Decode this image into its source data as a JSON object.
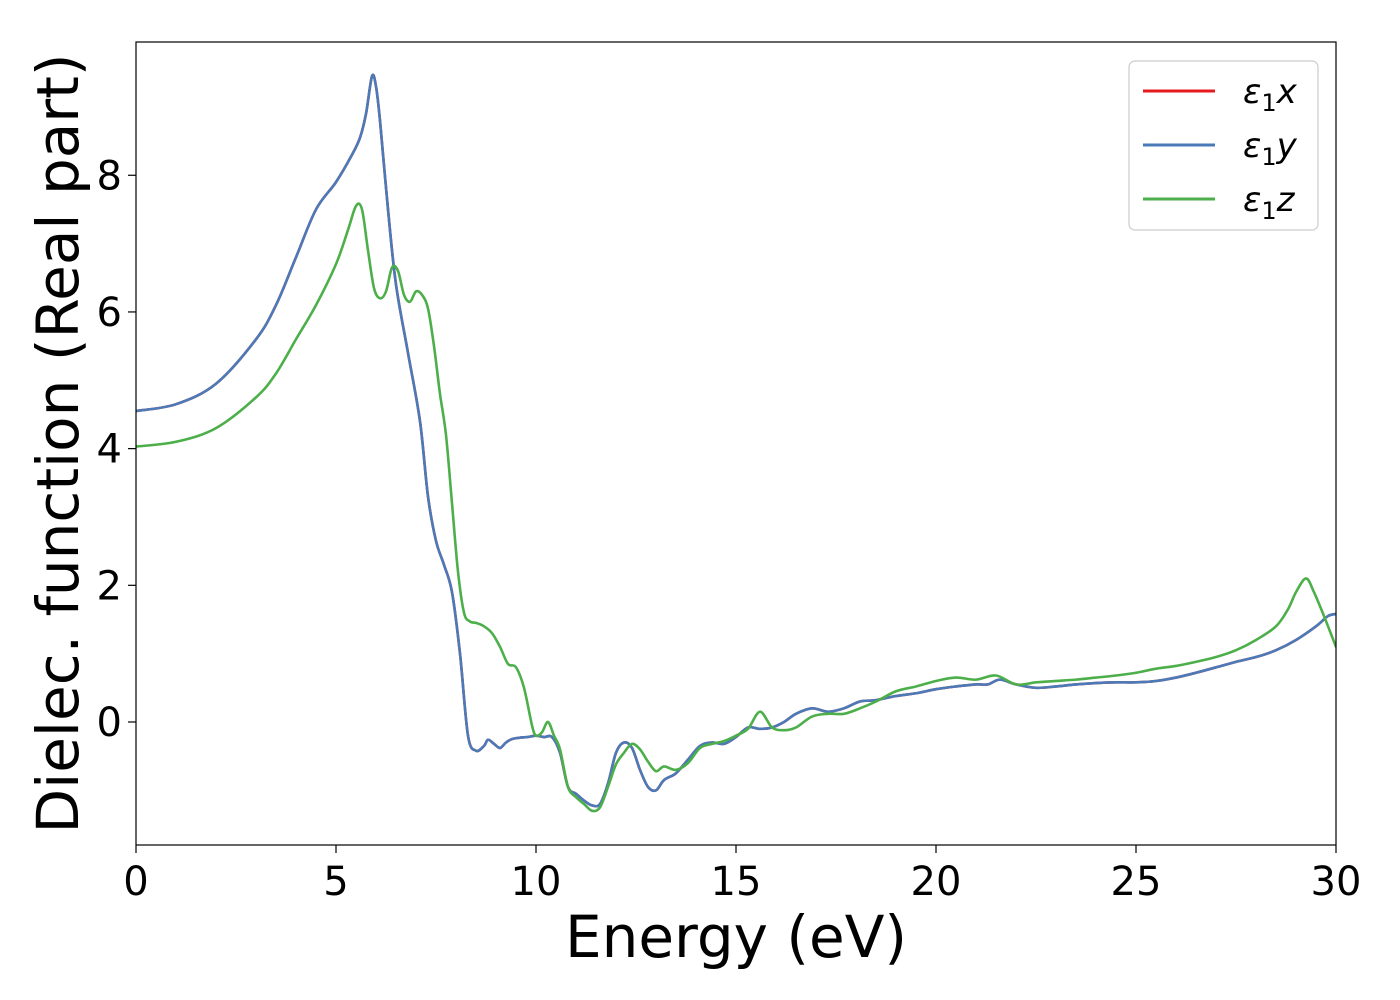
{
  "chart_data": {
    "type": "line",
    "title": "",
    "xlabel": "Energy (eV)",
    "ylabel": "Dielec. function (Real part)",
    "xlim": [
      0,
      30
    ],
    "ylim": [
      -1.8,
      9.95
    ],
    "xticks": [
      0,
      5,
      10,
      15,
      20,
      25,
      30
    ],
    "yticks": [
      0,
      2,
      4,
      6,
      8
    ],
    "grid": false,
    "legend_position": "top-right",
    "series": [
      {
        "name": "ε₁x",
        "legend_main": "ε",
        "legend_sub": "1",
        "legend_axis": "x",
        "color": "#e41a1c",
        "x": [
          0,
          1,
          2,
          3,
          3.5,
          4,
          4.5,
          5,
          5.4,
          5.6,
          5.75,
          5.9,
          6.0,
          6.1,
          6.3,
          6.5,
          6.8,
          7.1,
          7.3,
          7.5,
          7.7,
          7.9,
          8.1,
          8.3,
          8.5,
          8.7,
          8.8,
          8.95,
          9.1,
          9.25,
          9.4,
          9.6,
          9.8,
          10.0,
          10.2,
          10.4,
          10.6,
          10.8,
          11.0,
          11.2,
          11.4,
          11.6,
          11.8,
          12.0,
          12.2,
          12.4,
          12.6,
          12.8,
          13.0,
          13.2,
          13.5,
          13.8,
          14.1,
          14.4,
          14.7,
          15.0,
          15.3,
          15.6,
          15.9,
          16.2,
          16.5,
          16.9,
          17.3,
          17.7,
          18.1,
          18.5,
          19.0,
          19.5,
          20.0,
          20.5,
          21.0,
          21.3,
          21.6,
          22.0,
          22.5,
          23.0,
          23.5,
          24.0,
          24.5,
          25.0,
          25.5,
          26.0,
          26.5,
          27.0,
          27.5,
          28.0,
          28.5,
          29.0,
          29.5,
          29.8,
          30.0
        ],
        "y": [
          4.55,
          4.65,
          4.95,
          5.6,
          6.1,
          6.8,
          7.5,
          7.9,
          8.3,
          8.55,
          8.9,
          9.45,
          9.3,
          8.8,
          7.5,
          6.4,
          5.4,
          4.4,
          3.3,
          2.65,
          2.3,
          1.9,
          1.0,
          -0.2,
          -0.42,
          -0.35,
          -0.26,
          -0.32,
          -0.38,
          -0.3,
          -0.25,
          -0.23,
          -0.22,
          -0.2,
          -0.22,
          -0.22,
          -0.45,
          -0.95,
          -1.05,
          -1.15,
          -1.22,
          -1.2,
          -0.9,
          -0.45,
          -0.3,
          -0.38,
          -0.7,
          -0.95,
          -1.0,
          -0.85,
          -0.75,
          -0.55,
          -0.35,
          -0.3,
          -0.32,
          -0.22,
          -0.08,
          -0.1,
          -0.08,
          0.0,
          0.12,
          0.2,
          0.15,
          0.2,
          0.3,
          0.32,
          0.38,
          0.42,
          0.48,
          0.52,
          0.55,
          0.55,
          0.62,
          0.55,
          0.5,
          0.52,
          0.55,
          0.57,
          0.58,
          0.58,
          0.6,
          0.65,
          0.72,
          0.8,
          0.88,
          0.95,
          1.05,
          1.2,
          1.4,
          1.55,
          1.58
        ]
      },
      {
        "name": "ε₁y",
        "legend_main": "ε",
        "legend_sub": "1",
        "legend_axis": "y",
        "color": "#4a7ab8",
        "x": [
          0,
          1,
          2,
          3,
          3.5,
          4,
          4.5,
          5,
          5.4,
          5.6,
          5.75,
          5.9,
          6.0,
          6.1,
          6.3,
          6.5,
          6.8,
          7.1,
          7.3,
          7.5,
          7.7,
          7.9,
          8.1,
          8.3,
          8.5,
          8.7,
          8.8,
          8.95,
          9.1,
          9.25,
          9.4,
          9.6,
          9.8,
          10.0,
          10.2,
          10.4,
          10.6,
          10.8,
          11.0,
          11.2,
          11.4,
          11.6,
          11.8,
          12.0,
          12.2,
          12.4,
          12.6,
          12.8,
          13.0,
          13.2,
          13.5,
          13.8,
          14.1,
          14.4,
          14.7,
          15.0,
          15.3,
          15.6,
          15.9,
          16.2,
          16.5,
          16.9,
          17.3,
          17.7,
          18.1,
          18.5,
          19.0,
          19.5,
          20.0,
          20.5,
          21.0,
          21.3,
          21.6,
          22.0,
          22.5,
          23.0,
          23.5,
          24.0,
          24.5,
          25.0,
          25.5,
          26.0,
          26.5,
          27.0,
          27.5,
          28.0,
          28.5,
          29.0,
          29.5,
          29.8,
          30.0
        ],
        "y": [
          4.55,
          4.65,
          4.95,
          5.6,
          6.1,
          6.8,
          7.5,
          7.9,
          8.3,
          8.55,
          8.9,
          9.45,
          9.3,
          8.8,
          7.5,
          6.4,
          5.4,
          4.4,
          3.3,
          2.65,
          2.3,
          1.9,
          1.0,
          -0.2,
          -0.42,
          -0.35,
          -0.26,
          -0.32,
          -0.38,
          -0.3,
          -0.25,
          -0.23,
          -0.22,
          -0.2,
          -0.22,
          -0.22,
          -0.45,
          -0.95,
          -1.05,
          -1.15,
          -1.22,
          -1.2,
          -0.9,
          -0.45,
          -0.3,
          -0.38,
          -0.7,
          -0.95,
          -1.0,
          -0.85,
          -0.75,
          -0.55,
          -0.35,
          -0.3,
          -0.32,
          -0.22,
          -0.08,
          -0.1,
          -0.08,
          0.0,
          0.12,
          0.2,
          0.15,
          0.2,
          0.3,
          0.32,
          0.38,
          0.42,
          0.48,
          0.52,
          0.55,
          0.55,
          0.62,
          0.55,
          0.5,
          0.52,
          0.55,
          0.57,
          0.58,
          0.58,
          0.6,
          0.65,
          0.72,
          0.8,
          0.88,
          0.95,
          1.05,
          1.2,
          1.4,
          1.55,
          1.58
        ]
      },
      {
        "name": "ε₁z",
        "legend_main": "ε",
        "legend_sub": "1",
        "legend_axis": "z",
        "color": "#4daf4a",
        "x": [
          0,
          1,
          2,
          3,
          3.5,
          4,
          4.5,
          5,
          5.3,
          5.5,
          5.65,
          5.8,
          5.95,
          6.1,
          6.25,
          6.4,
          6.55,
          6.7,
          6.85,
          7.0,
          7.15,
          7.3,
          7.45,
          7.6,
          7.75,
          7.9,
          8.05,
          8.2,
          8.35,
          8.5,
          8.7,
          8.9,
          9.1,
          9.3,
          9.5,
          9.7,
          9.9,
          10.0,
          10.15,
          10.3,
          10.45,
          10.6,
          10.8,
          11.0,
          11.2,
          11.4,
          11.6,
          11.8,
          12.0,
          12.2,
          12.4,
          12.6,
          12.8,
          13.0,
          13.2,
          13.5,
          13.8,
          14.1,
          14.4,
          14.7,
          15.0,
          15.3,
          15.6,
          15.9,
          16.2,
          16.5,
          16.9,
          17.3,
          17.7,
          18.1,
          18.5,
          19.0,
          19.5,
          20.0,
          20.5,
          21.0,
          21.5,
          22.0,
          22.5,
          23.0,
          23.5,
          24.0,
          24.5,
          25.0,
          25.5,
          26.0,
          26.5,
          27.0,
          27.5,
          28.0,
          28.5,
          28.8,
          29.0,
          29.25,
          29.45,
          29.7,
          29.9,
          30.0
        ],
        "y": [
          4.03,
          4.1,
          4.3,
          4.75,
          5.1,
          5.6,
          6.1,
          6.7,
          7.2,
          7.55,
          7.5,
          6.9,
          6.35,
          6.2,
          6.3,
          6.65,
          6.6,
          6.25,
          6.15,
          6.3,
          6.25,
          6.05,
          5.5,
          4.8,
          4.2,
          3.2,
          2.2,
          1.6,
          1.47,
          1.45,
          1.4,
          1.3,
          1.1,
          0.85,
          0.8,
          0.5,
          -0.05,
          -0.2,
          -0.15,
          0.0,
          -0.2,
          -0.4,
          -0.95,
          -1.1,
          -1.2,
          -1.3,
          -1.25,
          -0.95,
          -0.62,
          -0.45,
          -0.32,
          -0.4,
          -0.58,
          -0.72,
          -0.65,
          -0.7,
          -0.6,
          -0.38,
          -0.32,
          -0.28,
          -0.2,
          -0.1,
          0.15,
          -0.08,
          -0.12,
          -0.08,
          0.08,
          0.12,
          0.12,
          0.2,
          0.3,
          0.45,
          0.52,
          0.6,
          0.65,
          0.62,
          0.68,
          0.55,
          0.58,
          0.6,
          0.62,
          0.65,
          0.68,
          0.72,
          0.78,
          0.82,
          0.88,
          0.95,
          1.05,
          1.2,
          1.4,
          1.65,
          1.9,
          2.1,
          1.9,
          1.55,
          1.25,
          1.1
        ]
      }
    ]
  }
}
